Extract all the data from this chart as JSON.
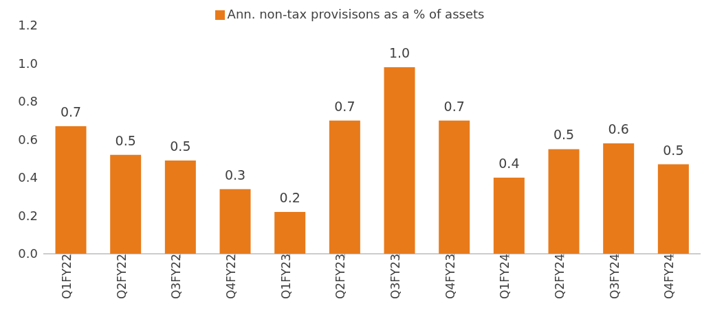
{
  "chart_data": {
    "type": "bar",
    "categories": [
      "Q1FY22",
      "Q2FY22",
      "Q3FY22",
      "Q4FY22",
      "Q1FY23",
      "Q2FY23",
      "Q3FY23",
      "Q4FY23",
      "Q1FY24",
      "Q2FY24",
      "Q3FY24",
      "Q4FY24"
    ],
    "series": [
      {
        "name": "Ann. non-tax provisisons as a % of assets",
        "color": "#e87a1a",
        "values": [
          0.67,
          0.52,
          0.49,
          0.34,
          0.22,
          0.7,
          0.98,
          0.7,
          0.4,
          0.55,
          0.58,
          0.47
        ],
        "value_labels": [
          "0.7",
          "0.5",
          "0.5",
          "0.3",
          "0.2",
          "0.7",
          "1.0",
          "0.7",
          "0.4",
          "0.5",
          "0.6",
          "0.5"
        ]
      }
    ],
    "ylim": [
      0,
      1.2
    ],
    "yticks": [
      {
        "value": 0,
        "label": "0.0"
      },
      {
        "value": 0.2,
        "label": "0.2"
      },
      {
        "value": 0.4,
        "label": "0.4"
      },
      {
        "value": 0.6,
        "label": "0.6"
      },
      {
        "value": 0.8,
        "label": "0.8"
      },
      {
        "value": 1.0,
        "label": "1.0"
      },
      {
        "value": 1.2,
        "label": "1.2"
      }
    ],
    "grid": false,
    "legend": "top"
  }
}
